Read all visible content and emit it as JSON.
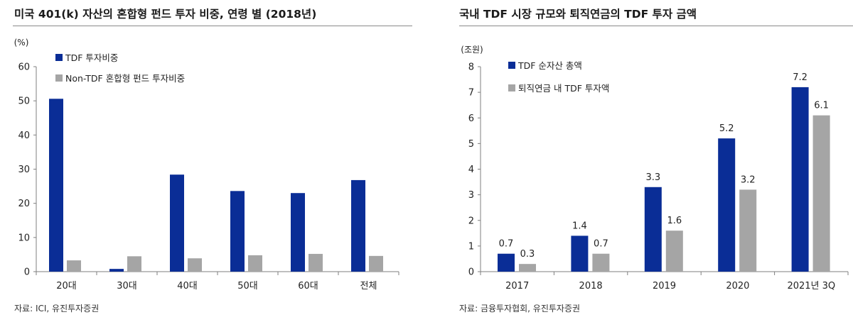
{
  "colors": {
    "primary": "#0a2d96",
    "secondary": "#a5a5a5",
    "axis": "#7f7f7f"
  },
  "left": {
    "title": "미국 401(k) 자산의 혼합형 펀드 투자 비중, 연령 별 (2018년)",
    "source": "자료: ICI, 유진투자증권",
    "chart_data": {
      "type": "bar",
      "unit": "(%)",
      "categories": [
        "20대",
        "30대",
        "40대",
        "50대",
        "60대",
        "전체"
      ],
      "series": [
        {
          "name": "TDF 투자비중",
          "values": [
            50.6,
            0.8,
            28.4,
            23.6,
            23.0,
            26.8
          ]
        },
        {
          "name": "Non-TDF 혼합형 펀드 투자비중",
          "values": [
            3.3,
            4.5,
            3.9,
            4.8,
            5.2,
            4.6
          ]
        }
      ],
      "ylim": [
        0,
        60
      ],
      "yticks": [
        0,
        10,
        20,
        30,
        40,
        50,
        60
      ],
      "legend_position": "top-left"
    }
  },
  "right": {
    "title": "국내 TDF 시장 규모와 퇴직연금의 TDF 투자 금액",
    "source": "자료: 금융투자협회, 유진투자증권",
    "chart_data": {
      "type": "bar",
      "unit": "(조원)",
      "categories": [
        "2017",
        "2018",
        "2019",
        "2020",
        "2021년 3Q"
      ],
      "series": [
        {
          "name": "TDF 순자산 총액",
          "values": [
            0.7,
            1.4,
            3.3,
            5.2,
            7.2
          ],
          "labels": [
            "0.7",
            "1.4",
            "3.3",
            "5.2",
            "7.2"
          ]
        },
        {
          "name": "퇴직연금 내 TDF 투자액",
          "values": [
            0.3,
            0.7,
            1.6,
            3.2,
            6.1
          ],
          "labels": [
            "0.3",
            "0.7",
            "1.6",
            "3.2",
            "6.1"
          ]
        }
      ],
      "ylim": [
        0,
        8
      ],
      "yticks": [
        0,
        1,
        2,
        3,
        4,
        5,
        6,
        7,
        8
      ],
      "legend_position": "top-left"
    }
  }
}
